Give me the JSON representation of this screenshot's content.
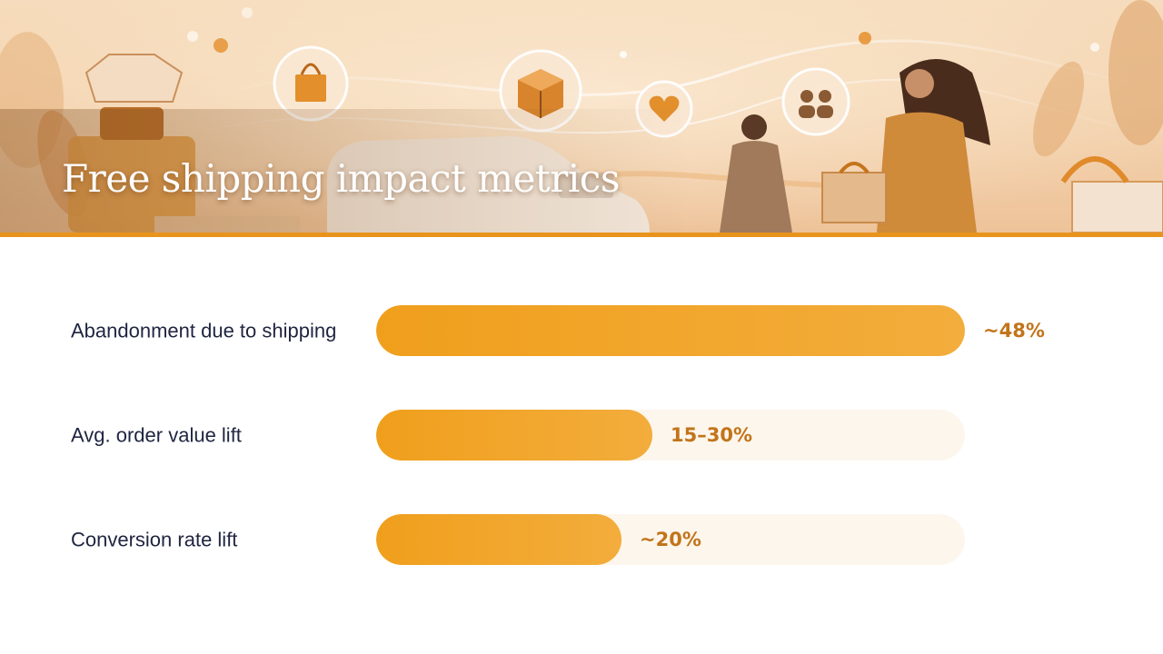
{
  "header": {
    "title": "Free shipping impact metrics"
  },
  "colors": {
    "bar_fill": "#f09f1c",
    "bar_track": "#fdf6ec",
    "value_text": "#c2741a",
    "label_text": "#1f2540",
    "accent_rule": "#e8941c"
  },
  "banner_icons": [
    "shopping-bag-icon",
    "package-box-icon",
    "heart-icon",
    "people-icon"
  ],
  "chart_data": {
    "type": "bar",
    "orientation": "horizontal",
    "categories": [
      "Abandonment due to shipping",
      "Avg. order value lift",
      "Conversion rate lift"
    ],
    "values": [
      48,
      22.5,
      20
    ],
    "value_labels": [
      "~48%",
      "15–30%",
      "~20%"
    ],
    "xlim": [
      0,
      48
    ],
    "grid": false,
    "legend": "none"
  }
}
